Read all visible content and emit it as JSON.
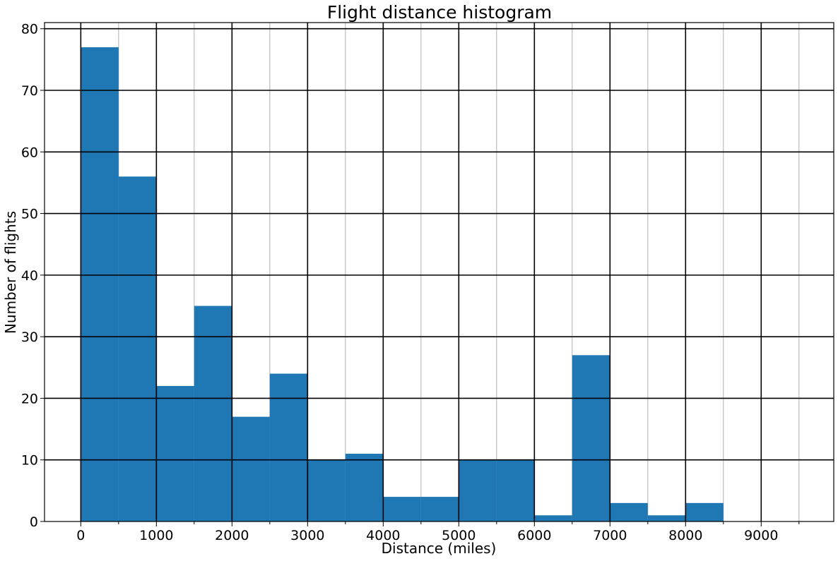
{
  "chart_data": {
    "type": "bar",
    "title": "Flight distance histogram",
    "xlabel": "Distance (miles)",
    "ylabel": "Number of flights",
    "bin_width": 500,
    "bins": [
      {
        "x_start": 0,
        "x_end": 500,
        "count": 77
      },
      {
        "x_start": 500,
        "x_end": 1000,
        "count": 56
      },
      {
        "x_start": 1000,
        "x_end": 1500,
        "count": 22
      },
      {
        "x_start": 1500,
        "x_end": 2000,
        "count": 35
      },
      {
        "x_start": 2000,
        "x_end": 2500,
        "count": 17
      },
      {
        "x_start": 2500,
        "x_end": 3000,
        "count": 24
      },
      {
        "x_start": 3000,
        "x_end": 3500,
        "count": 10
      },
      {
        "x_start": 3500,
        "x_end": 4000,
        "count": 11
      },
      {
        "x_start": 4000,
        "x_end": 4500,
        "count": 4
      },
      {
        "x_start": 4500,
        "x_end": 5000,
        "count": 4
      },
      {
        "x_start": 5000,
        "x_end": 5500,
        "count": 10
      },
      {
        "x_start": 5500,
        "x_end": 6000,
        "count": 10
      },
      {
        "x_start": 6000,
        "x_end": 6500,
        "count": 1
      },
      {
        "x_start": 6500,
        "x_end": 7000,
        "count": 27
      },
      {
        "x_start": 7000,
        "x_end": 7500,
        "count": 3
      },
      {
        "x_start": 7500,
        "x_end": 8000,
        "count": 1
      },
      {
        "x_start": 8000,
        "x_end": 8500,
        "count": 3
      }
    ],
    "xlim": [
      -480,
      9960
    ],
    "ylim": [
      0,
      81
    ],
    "x_ticks": [
      0,
      1000,
      2000,
      3000,
      4000,
      5000,
      6000,
      7000,
      8000,
      9000
    ],
    "x_tick_labels": [
      "0",
      "1000",
      "2000",
      "3000",
      "4000",
      "5000",
      "6000",
      "7000",
      "8000",
      "9000"
    ],
    "x_minor_ticks": [
      500,
      1500,
      2500,
      3500,
      4500,
      5500,
      6500,
      7500,
      8500,
      9500
    ],
    "y_ticks": [
      0,
      10,
      20,
      30,
      40,
      50,
      60,
      70,
      80
    ],
    "y_tick_labels": [
      "0",
      "10",
      "20",
      "30",
      "40",
      "50",
      "60",
      "70",
      "80"
    ],
    "grid": {
      "major": true,
      "minor": true
    },
    "colors": {
      "bar": "#1f77b4",
      "major_grid": "#000000",
      "minor_grid": "#b0b0b0",
      "axes": "#000000"
    }
  }
}
